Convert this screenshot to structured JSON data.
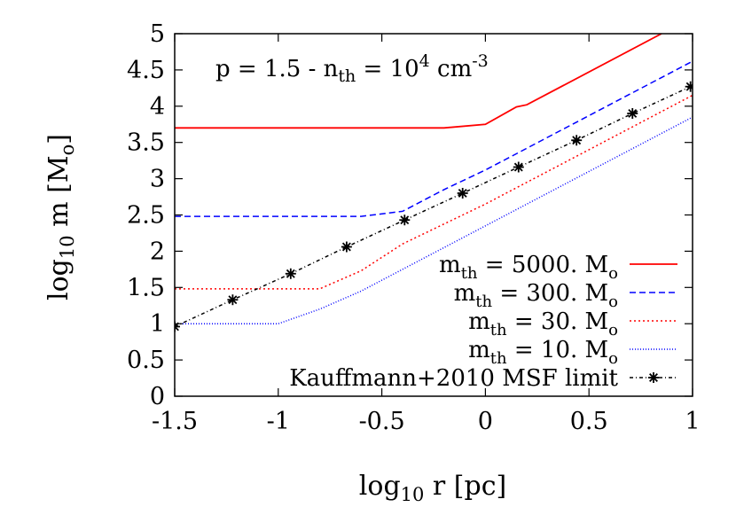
{
  "chart_data": {
    "type": "line",
    "title": "",
    "annotation": "p = 1.5 - n_th = 10^4 cm^-3",
    "annotation_parts": {
      "p": "p = 1.5 - n",
      "p_sub": "th",
      "mid": " = 10",
      "exp": "4",
      "unit": " cm",
      "unit_exp": "-3"
    },
    "xlabel": {
      "pre": "log",
      "sub": "10",
      "post": " r [pc]"
    },
    "ylabel": {
      "pre": "log",
      "sub": "10",
      "post": " m [M",
      "post_sub": "o",
      "end": "]"
    },
    "xlim": [
      -1.5,
      1
    ],
    "ylim": [
      0,
      5
    ],
    "x_ticks": [
      -1.5,
      -1,
      -0.5,
      0,
      0.5,
      1
    ],
    "x_tick_labels": [
      "-1.5",
      "-1",
      "-0.5",
      "0",
      "0.5",
      "1"
    ],
    "y_ticks": [
      0,
      0.5,
      1,
      1.5,
      2,
      2.5,
      3,
      3.5,
      4,
      4.5,
      5
    ],
    "y_tick_labels": [
      "0",
      "0.5",
      "1",
      "1.5",
      "2",
      "2.5",
      "3",
      "3.5",
      "4",
      "4.5",
      "5"
    ],
    "grid": false,
    "legend_position": "bottom-right",
    "series": [
      {
        "name": "m_th = 5000. M_o",
        "label_parts": {
          "pre": "m",
          "sub": "th",
          "mid": " = 5000. M",
          "sub2": "o"
        },
        "color": "#ff0000",
        "dash": "solid",
        "marker": "none",
        "x": [
          -1.5,
          -0.2,
          0,
          0.15,
          0.2,
          0.85
        ],
        "y": [
          3.7,
          3.7,
          3.75,
          3.99,
          4.02,
          5.0
        ]
      },
      {
        "name": "m_th = 300. M_o",
        "label_parts": {
          "pre": "m",
          "sub": "th",
          "mid": " = 300. M",
          "sub2": "o"
        },
        "color": "#0000ff",
        "dash": "dashed",
        "marker": "none",
        "x": [
          -1.5,
          -0.6,
          -0.4,
          -0.2,
          0,
          0.5,
          1.0
        ],
        "y": [
          2.48,
          2.48,
          2.55,
          2.85,
          3.12,
          3.87,
          4.62
        ]
      },
      {
        "name": "m_th = 30. M_o",
        "label_parts": {
          "pre": "m",
          "sub": "th",
          "mid": " = 30. M",
          "sub2": "o"
        },
        "color": "#ff0000",
        "dash": "dotted",
        "marker": "none",
        "x": [
          -1.5,
          -0.8,
          -0.6,
          -0.4,
          0,
          0.5,
          1.0
        ],
        "y": [
          1.48,
          1.48,
          1.73,
          2.1,
          2.65,
          3.4,
          4.15
        ]
      },
      {
        "name": "m_th = 10. M_o",
        "label_parts": {
          "pre": "m",
          "sub": "th",
          "mid": " = 10. M",
          "sub2": "o"
        },
        "color": "#0000ff",
        "dash": "dotted-fine",
        "marker": "none",
        "x": [
          -1.5,
          -1.0,
          -0.8,
          -0.6,
          0,
          0.5,
          1.0
        ],
        "y": [
          1.0,
          1.0,
          1.2,
          1.45,
          2.35,
          3.1,
          3.85
        ]
      },
      {
        "name": "Kauffmann+2010 MSF limit",
        "label_parts": {
          "pre": "Kauffmann+2010 MSF limit",
          "sub": "",
          "mid": "",
          "sub2": ""
        },
        "color": "#000000",
        "dash": "dash-dot",
        "marker": "asterisk",
        "x": [
          -1.5,
          -1.22,
          -0.94,
          -0.67,
          -0.39,
          -0.11,
          0.16,
          0.44,
          0.71,
          0.99
        ],
        "y": [
          0.96,
          1.33,
          1.69,
          2.06,
          2.43,
          2.8,
          3.16,
          3.53,
          3.9,
          4.27
        ]
      }
    ]
  }
}
